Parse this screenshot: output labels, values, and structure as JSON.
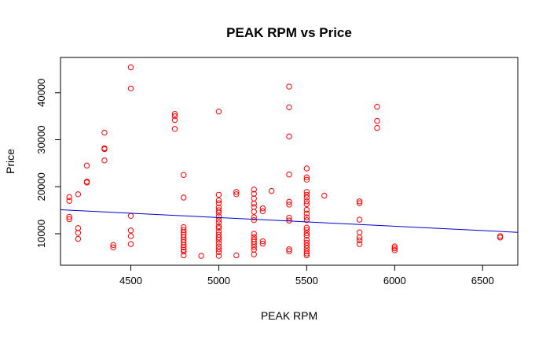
{
  "chart_data": {
    "type": "scatter",
    "title": "PEAK RPM vs Price",
    "xlabel": "PEAK RPM",
    "ylabel": "Price",
    "xlim": [
      4100,
      6700
    ],
    "ylim": [
      3300,
      47500
    ],
    "x_ticks": [
      4500,
      5000,
      5500,
      6000,
      6500
    ],
    "y_ticks": [
      10000,
      20000,
      30000,
      40000
    ],
    "grid": false,
    "legend": "none",
    "point_color": "#ff0000",
    "line_color": "#0000cc",
    "regression_line": {
      "x": [
        4100,
        6700
      ],
      "y": [
        15100,
        10300
      ]
    },
    "points": [
      [
        4150,
        17800
      ],
      [
        4150,
        17000
      ],
      [
        4150,
        13600
      ],
      [
        4150,
        13100
      ],
      [
        4200,
        18400
      ],
      [
        4200,
        11200
      ],
      [
        4200,
        10200
      ],
      [
        4200,
        8900
      ],
      [
        4250,
        24500
      ],
      [
        4250,
        21100
      ],
      [
        4250,
        20900
      ],
      [
        4350,
        31500
      ],
      [
        4350,
        28200
      ],
      [
        4350,
        28000
      ],
      [
        4350,
        25600
      ],
      [
        4400,
        7600
      ],
      [
        4400,
        7100
      ],
      [
        4500,
        45400
      ],
      [
        4500,
        40900
      ],
      [
        4500,
        13800
      ],
      [
        4500,
        10700
      ],
      [
        4500,
        9500
      ],
      [
        4500,
        7800
      ],
      [
        4750,
        35500
      ],
      [
        4750,
        35000
      ],
      [
        4750,
        34200
      ],
      [
        4750,
        32300
      ],
      [
        4800,
        22500
      ],
      [
        4800,
        17700
      ],
      [
        4800,
        11400
      ],
      [
        4800,
        10800
      ],
      [
        4800,
        10300
      ],
      [
        4800,
        9800
      ],
      [
        4800,
        9300
      ],
      [
        4800,
        8700
      ],
      [
        4800,
        8200
      ],
      [
        4800,
        7600
      ],
      [
        4800,
        7100
      ],
      [
        4800,
        6600
      ],
      [
        4800,
        6200
      ],
      [
        4800,
        5400
      ],
      [
        4900,
        5300
      ],
      [
        5000,
        36000
      ],
      [
        5000,
        18300
      ],
      [
        5000,
        17100
      ],
      [
        5000,
        16500
      ],
      [
        5000,
        15600
      ],
      [
        5000,
        15000
      ],
      [
        5000,
        14500
      ],
      [
        5000,
        13700
      ],
      [
        5000,
        13000
      ],
      [
        5000,
        12400
      ],
      [
        5000,
        11600
      ],
      [
        5000,
        11200
      ],
      [
        5000,
        10400
      ],
      [
        5000,
        9800
      ],
      [
        5000,
        9200
      ],
      [
        5000,
        8700
      ],
      [
        5000,
        8000
      ],
      [
        5000,
        7300
      ],
      [
        5000,
        6700
      ],
      [
        5000,
        6100
      ],
      [
        5000,
        5300
      ],
      [
        5100,
        18900
      ],
      [
        5100,
        18400
      ],
      [
        5100,
        5400
      ],
      [
        5200,
        19400
      ],
      [
        5200,
        18500
      ],
      [
        5200,
        17500
      ],
      [
        5200,
        16400
      ],
      [
        5200,
        15700
      ],
      [
        5200,
        14700
      ],
      [
        5200,
        13500
      ],
      [
        5200,
        12900
      ],
      [
        5200,
        10000
      ],
      [
        5200,
        9300
      ],
      [
        5200,
        8800
      ],
      [
        5200,
        8300
      ],
      [
        5200,
        7800
      ],
      [
        5200,
        7200
      ],
      [
        5200,
        6600
      ],
      [
        5200,
        5600
      ],
      [
        5250,
        15400
      ],
      [
        5250,
        14800
      ],
      [
        5250,
        8400
      ],
      [
        5250,
        7900
      ],
      [
        5300,
        19100
      ],
      [
        5400,
        41300
      ],
      [
        5400,
        36900
      ],
      [
        5400,
        30700
      ],
      [
        5400,
        22600
      ],
      [
        5400,
        16800
      ],
      [
        5400,
        16200
      ],
      [
        5400,
        13400
      ],
      [
        5400,
        12800
      ],
      [
        5400,
        6700
      ],
      [
        5400,
        6300
      ],
      [
        5500,
        23900
      ],
      [
        5500,
        22000
      ],
      [
        5500,
        21500
      ],
      [
        5500,
        18900
      ],
      [
        5500,
        18300
      ],
      [
        5500,
        17700
      ],
      [
        5500,
        16900
      ],
      [
        5500,
        16300
      ],
      [
        5500,
        15100
      ],
      [
        5500,
        14300
      ],
      [
        5500,
        13500
      ],
      [
        5500,
        12900
      ],
      [
        5500,
        11300
      ],
      [
        5500,
        10800
      ],
      [
        5500,
        10100
      ],
      [
        5500,
        9600
      ],
      [
        5500,
        8700
      ],
      [
        5500,
        8100
      ],
      [
        5500,
        7500
      ],
      [
        5500,
        6900
      ],
      [
        5500,
        6300
      ],
      [
        5500,
        5800
      ],
      [
        5500,
        5400
      ],
      [
        5600,
        18100
      ],
      [
        5800,
        16900
      ],
      [
        5800,
        16500
      ],
      [
        5800,
        13000
      ],
      [
        5800,
        10300
      ],
      [
        5800,
        9200
      ],
      [
        5800,
        8600
      ],
      [
        5800,
        7800
      ],
      [
        5900,
        37000
      ],
      [
        5900,
        34000
      ],
      [
        5900,
        32500
      ],
      [
        6000,
        7300
      ],
      [
        6000,
        6900
      ],
      [
        6000,
        6500
      ],
      [
        6600,
        9500
      ],
      [
        6600,
        9200
      ]
    ]
  }
}
